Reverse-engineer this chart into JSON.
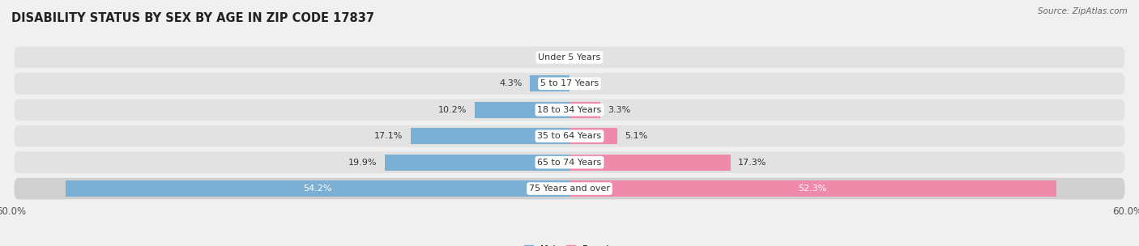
{
  "title": "DISABILITY STATUS BY SEX BY AGE IN ZIP CODE 17837",
  "source": "Source: ZipAtlas.com",
  "categories": [
    "Under 5 Years",
    "5 to 17 Years",
    "18 to 34 Years",
    "35 to 64 Years",
    "65 to 74 Years",
    "75 Years and over"
  ],
  "male_values": [
    0.0,
    4.3,
    10.2,
    17.1,
    19.9,
    54.2
  ],
  "female_values": [
    0.0,
    0.0,
    3.3,
    5.1,
    17.3,
    52.3
  ],
  "male_color": "#7bafd4",
  "female_color": "#f08aaa",
  "axis_max": 60.0,
  "bar_height": 0.62,
  "background_color": "#f0f0f0",
  "row_color": "#e2e2e2",
  "last_row_color": "#d0d0d0",
  "title_fontsize": 10.5,
  "label_fontsize": 8,
  "tick_fontsize": 8.5,
  "source_fontsize": 7.5
}
